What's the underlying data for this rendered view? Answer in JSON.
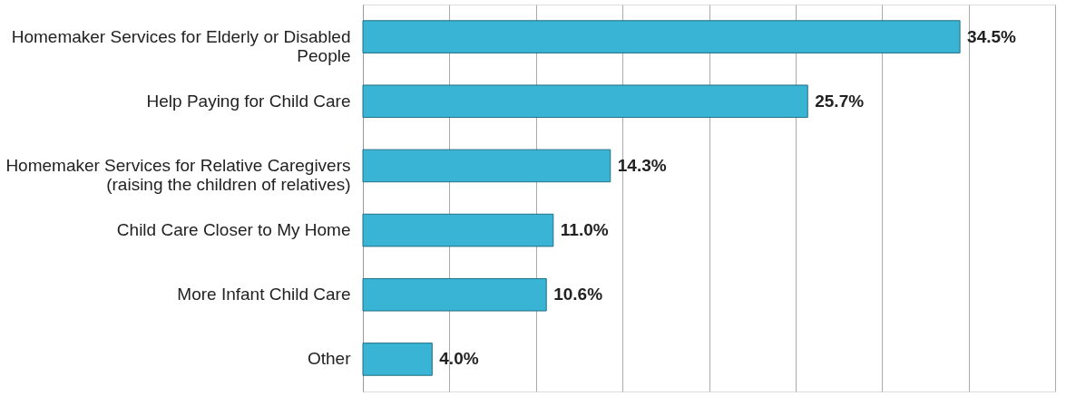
{
  "chart_data": {
    "type": "bar",
    "orientation": "horizontal",
    "categories": [
      "Homemaker Services for Elderly or Disabled People",
      "Help Paying for Child Care",
      "Homemaker Services for Relative Caregivers (raising the children of relatives)",
      "Child Care Closer to My Home",
      "More Infant Child Care",
      "Other"
    ],
    "values": [
      34.5,
      25.7,
      14.3,
      11.0,
      10.6,
      4.0
    ],
    "value_labels": [
      "34.5%",
      "25.7%",
      "14.3%",
      "11.0%",
      "10.6%",
      "4.0%"
    ],
    "color": "#3ab4d4",
    "xlim": [
      0,
      40
    ],
    "xticks": [
      {
        "value": 0,
        "label": null
      },
      {
        "value": 5,
        "label": null
      },
      {
        "value": 10,
        "label": null
      },
      {
        "value": 15,
        "label": null
      },
      {
        "value": 20,
        "label": null
      },
      {
        "value": 25,
        "label": null
      },
      {
        "value": 30,
        "label": null
      },
      {
        "value": 35,
        "label": null
      },
      {
        "value": 40,
        "label": null
      }
    ],
    "grid": "x",
    "tick_labels": "y"
  }
}
